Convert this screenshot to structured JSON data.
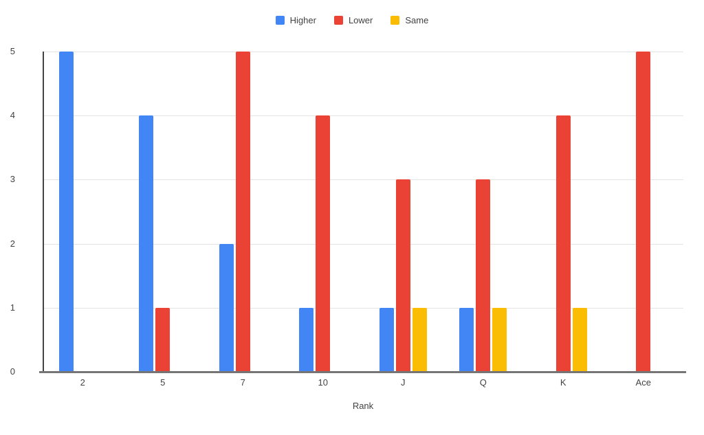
{
  "chart_data": {
    "type": "bar",
    "title": "",
    "xlabel": "Rank",
    "ylabel": "",
    "categories": [
      "2",
      "5",
      "7",
      "10",
      "J",
      "Q",
      "K",
      "Ace"
    ],
    "series": [
      {
        "name": "Higher",
        "color": "#4285F4",
        "values": [
          5,
          4,
          2,
          1,
          1,
          1,
          0,
          0
        ]
      },
      {
        "name": "Lower",
        "color": "#EA4335",
        "values": [
          0,
          1,
          5,
          4,
          3,
          3,
          4,
          5
        ]
      },
      {
        "name": "Same",
        "color": "#FBBC04",
        "values": [
          0,
          0,
          0,
          0,
          1,
          1,
          1,
          0
        ]
      }
    ],
    "y_ticks": [
      0,
      1,
      2,
      3,
      4,
      5
    ],
    "ylim": [
      0,
      5
    ],
    "grid": true,
    "legend_position": "top"
  },
  "colors": {
    "background": "#ffffff",
    "gridline": "#e3e3e3",
    "y_axis_line": "#424242",
    "baseline": "#757575",
    "text": "#424242"
  }
}
